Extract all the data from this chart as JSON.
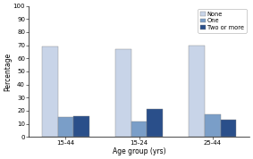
{
  "groups": [
    "15-44",
    "15-24",
    "25-44"
  ],
  "series": [
    {
      "label": "None",
      "values": [
        69,
        67,
        70
      ],
      "color": "#c8d4e8"
    },
    {
      "label": "One",
      "values": [
        15,
        12,
        17
      ],
      "color": "#7a9ec8"
    },
    {
      "label": "Two or more",
      "values": [
        16,
        21,
        13
      ],
      "color": "#2a4f8a"
    }
  ],
  "xlabel": "Age group (yrs)",
  "ylabel": "Percentage",
  "ylim": [
    0,
    100
  ],
  "yticks": [
    0,
    10,
    20,
    30,
    40,
    50,
    60,
    70,
    80,
    90,
    100
  ],
  "bar_width": 0.15,
  "group_centers": [
    0.35,
    1.05,
    1.75
  ],
  "legend_fontsize": 4.8,
  "axis_fontsize": 5.5,
  "tick_fontsize": 5.0,
  "background_color": "#ffffff",
  "edge_color": "#888888"
}
